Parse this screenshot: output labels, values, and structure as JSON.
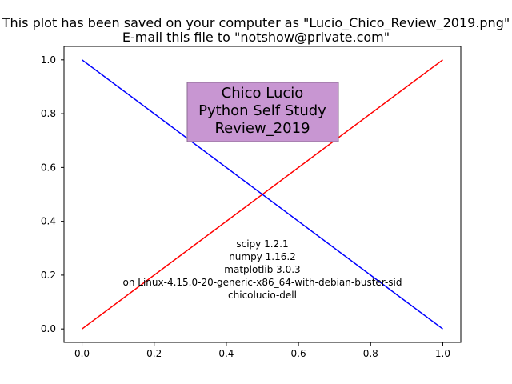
{
  "figure": {
    "title_lines": [
      "This plot has been saved on your computer as \"Lucio_Chico_Review_2019.png\"",
      "E-mail this file to \"notshow@private.com\""
    ]
  },
  "chart_data": {
    "type": "line",
    "xlim": [
      -0.05,
      1.05
    ],
    "ylim": [
      -0.05,
      1.05
    ],
    "x_ticks": [
      0.0,
      0.2,
      0.4,
      0.6,
      0.8,
      1.0
    ],
    "y_ticks": [
      0.0,
      0.2,
      0.4,
      0.6,
      0.8,
      1.0
    ],
    "x_tick_labels": [
      "0.0",
      "0.2",
      "0.4",
      "0.6",
      "0.8",
      "1.0"
    ],
    "y_tick_labels": [
      "0.0",
      "0.2",
      "0.4",
      "0.6",
      "0.8",
      "1.0"
    ],
    "grid": false,
    "series": [
      {
        "color": "#ff0000",
        "x": [
          0,
          1
        ],
        "y": [
          0,
          1
        ]
      },
      {
        "color": "#0000ff",
        "x": [
          0,
          1
        ],
        "y": [
          1,
          0
        ]
      }
    ],
    "annotations": {
      "box_lines": [
        "Chico Lucio",
        "Python Self Study",
        "Review_2019"
      ],
      "box_color": "#c896d2",
      "info_lines": [
        "scipy 1.2.1",
        "numpy 1.16.2",
        "matplotlib 3.0.3",
        "on Linux-4.15.0-20-generic-x86_64-with-debian-buster-sid",
        "chicolucio-dell"
      ]
    }
  }
}
